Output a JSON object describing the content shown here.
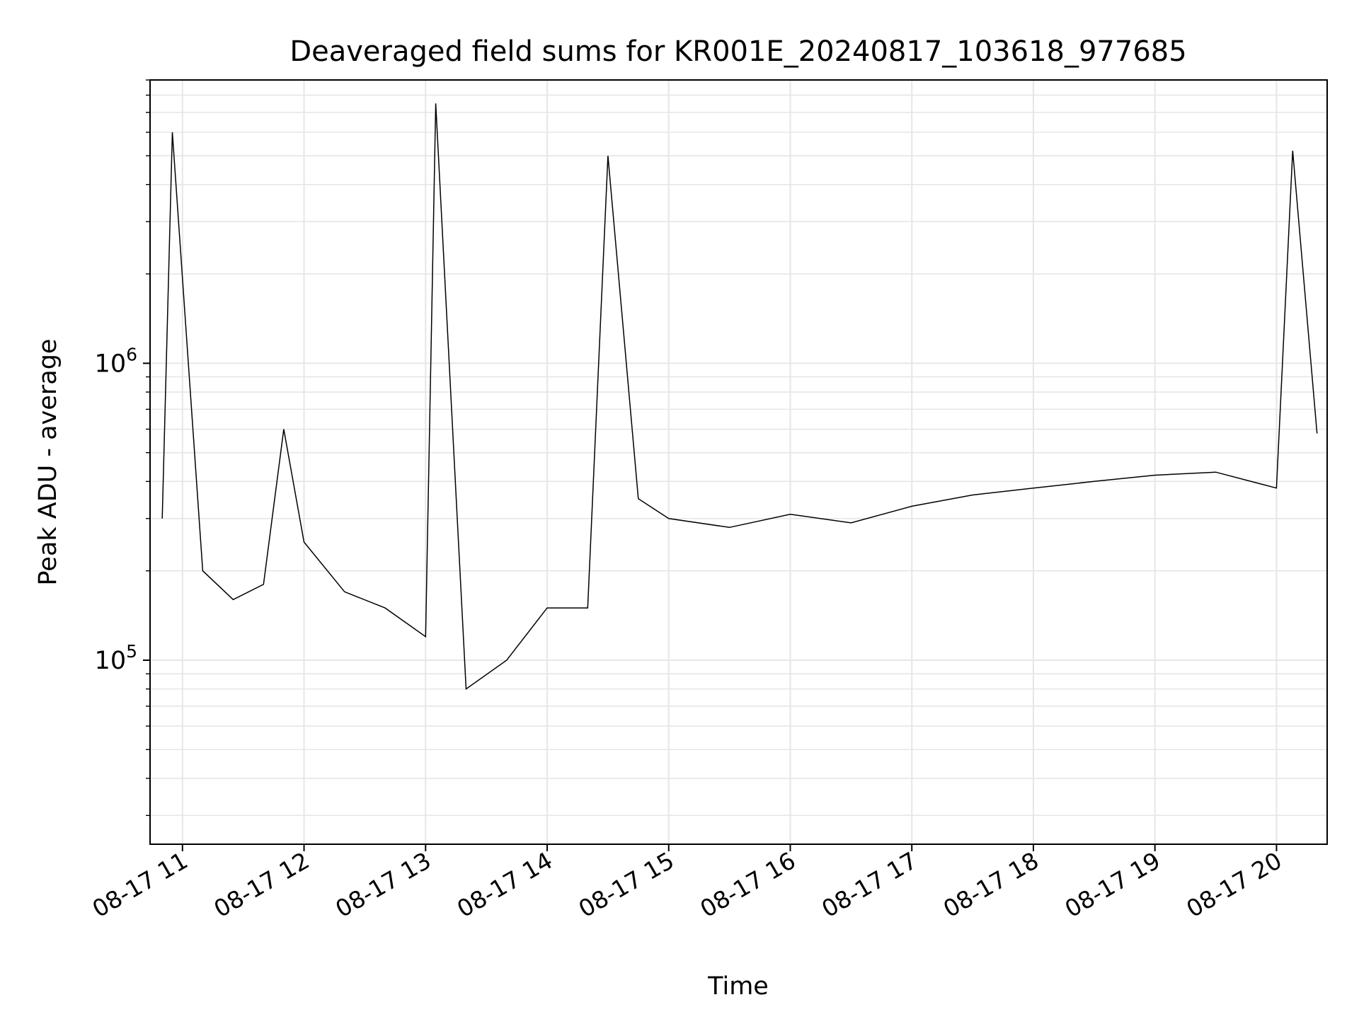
{
  "chart_data": {
    "type": "line",
    "title": "Deaveraged field sums for KR001E_20240817_103618_977685",
    "xlabel": "Time",
    "ylabel": "Peak ADU - average",
    "x_ticks": [
      "08-17 11",
      "08-17 12",
      "08-17 13",
      "08-17 14",
      "08-17 15",
      "08-17 16",
      "08-17 17",
      "08-17 18",
      "08-17 19",
      "08-17 20"
    ],
    "y_ticks": [
      {
        "base": "10",
        "exp": "5",
        "value": 100000
      },
      {
        "base": "10",
        "exp": "6",
        "value": 1000000
      }
    ],
    "xlim": [
      "2024-08-17 10:44",
      "2024-08-17 20:25"
    ],
    "ylim": [
      24000,
      9000000
    ],
    "y_scale": "log",
    "grid": true,
    "line_color": "#000000",
    "grid_color": "#e6e6e6",
    "series": [
      {
        "x": [
          "2024-08-17 10:50",
          "2024-08-17 10:55",
          "2024-08-17 11:10",
          "2024-08-17 11:25",
          "2024-08-17 11:40",
          "2024-08-17 11:50",
          "2024-08-17 12:00",
          "2024-08-17 12:20",
          "2024-08-17 12:40",
          "2024-08-17 13:00",
          "2024-08-17 13:05",
          "2024-08-17 13:20",
          "2024-08-17 13:40",
          "2024-08-17 14:00",
          "2024-08-17 14:20",
          "2024-08-17 14:30",
          "2024-08-17 14:45",
          "2024-08-17 15:00",
          "2024-08-17 15:30",
          "2024-08-17 16:00",
          "2024-08-17 16:30",
          "2024-08-17 17:00",
          "2024-08-17 17:30",
          "2024-08-17 18:00",
          "2024-08-17 18:30",
          "2024-08-17 19:00",
          "2024-08-17 19:30",
          "2024-08-17 20:00",
          "2024-08-17 20:08",
          "2024-08-17 20:20"
        ],
        "y": [
          300000,
          6000000,
          200000,
          160000,
          180000,
          600000,
          250000,
          170000,
          150000,
          120000,
          7500000,
          80000,
          100000,
          150000,
          150000,
          5000000,
          350000,
          300000,
          280000,
          310000,
          290000,
          330000,
          360000,
          380000,
          400000,
          420000,
          430000,
          380000,
          5200000,
          580000
        ]
      }
    ]
  }
}
